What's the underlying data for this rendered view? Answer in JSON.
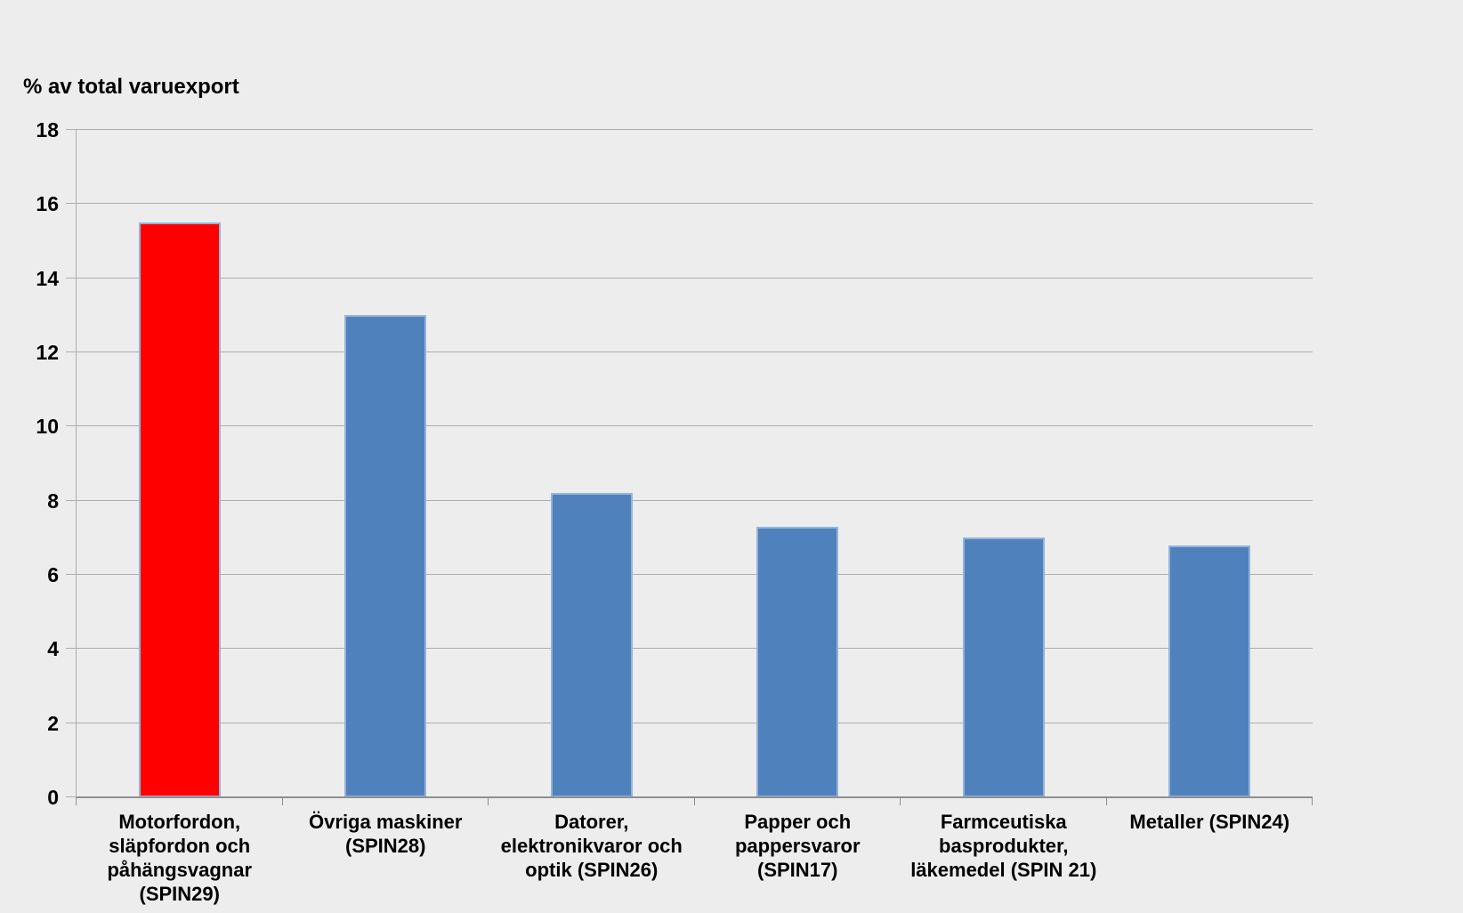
{
  "chart_data": {
    "type": "bar",
    "title": "% av total varuexport",
    "categories": [
      "Motorfordon,\nsläpfordon och\npåhängsvagnar\n(SPIN29)",
      "Övriga maskiner\n(SPIN28)",
      "Datorer,\nelektronikvaror och\noptik (SPIN26)",
      "Papper och\npappersvaror\n(SPIN17)",
      "Farmceutiska\nbasprodukter,\nläkemedel (SPIN 21)",
      "Metaller (SPIN24)"
    ],
    "values": [
      15.5,
      13.0,
      8.2,
      7.3,
      7.0,
      6.8
    ],
    "bar_colors": [
      "#FF0000",
      "#4F81BD",
      "#4F81BD",
      "#4F81BD",
      "#4F81BD",
      "#4F81BD"
    ],
    "xlabel": "",
    "ylabel": "% av total varuexport",
    "ylim": [
      0,
      18
    ],
    "yticks": [
      0,
      2,
      4,
      6,
      8,
      10,
      12,
      14,
      16,
      18
    ],
    "grid": true,
    "legend": "none",
    "colors": {
      "background": "#EDEDED",
      "bar_default": "#4F81BD",
      "bar_highlight": "#FF0000",
      "bar_border": "#95B3D7",
      "gridline": "#ADADAD",
      "axis": "#8F8F8F",
      "text": "#000000"
    }
  }
}
